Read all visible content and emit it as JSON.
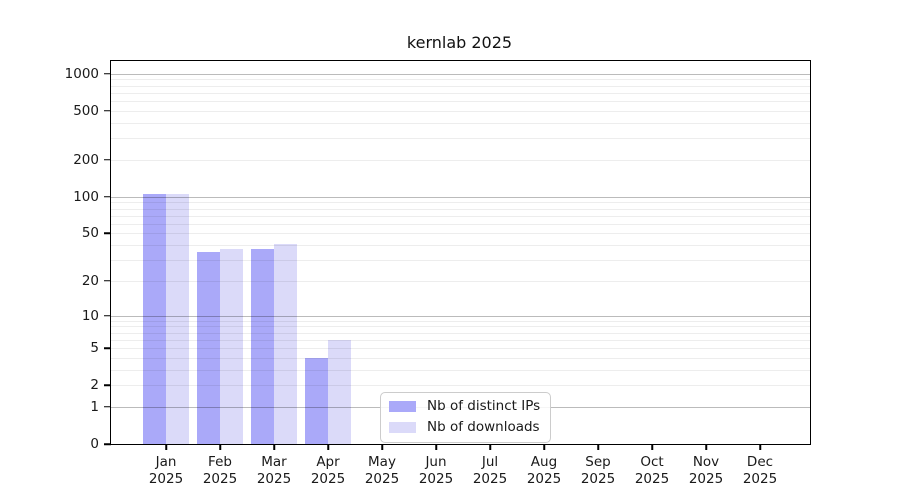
{
  "chart_data": {
    "type": "bar",
    "title": "kernlab 2025",
    "xlabel": "",
    "ylabel": "",
    "year_label": "2025",
    "categories": [
      "Jan",
      "Feb",
      "Mar",
      "Apr",
      "May",
      "Jun",
      "Jul",
      "Aug",
      "Sep",
      "Oct",
      "Nov",
      "Dec"
    ],
    "series": [
      {
        "name": "Nb of distinct IPs",
        "color": "#aaa9f9",
        "values": [
          105,
          35,
          37,
          4,
          0,
          0,
          0,
          0,
          0,
          0,
          0,
          0
        ]
      },
      {
        "name": "Nb of downloads",
        "color": "#dbdaf9",
        "values": [
          105,
          37,
          41,
          6,
          0,
          0,
          0,
          0,
          0,
          0,
          0,
          0
        ]
      }
    ],
    "yticks": [
      0,
      1,
      2,
      5,
      10,
      20,
      50,
      100,
      200,
      500,
      1000
    ],
    "yscale": "log10(1+value)",
    "ylim": [
      0,
      1300
    ],
    "grid": {
      "major_color": "#bbbbbb",
      "minor_color": "#ededed",
      "majors": [
        1,
        10,
        100,
        1000
      ]
    },
    "legend": {
      "position": "inside-bottom-center",
      "border_color": "#cccccc"
    }
  }
}
